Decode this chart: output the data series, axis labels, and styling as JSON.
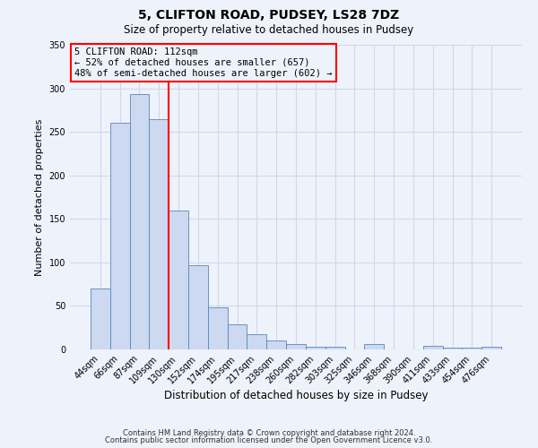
{
  "title": "5, CLIFTON ROAD, PUDSEY, LS28 7DZ",
  "subtitle": "Size of property relative to detached houses in Pudsey",
  "xlabel": "Distribution of detached houses by size in Pudsey",
  "ylabel": "Number of detached properties",
  "bin_labels": [
    "44sqm",
    "66sqm",
    "87sqm",
    "109sqm",
    "130sqm",
    "152sqm",
    "174sqm",
    "195sqm",
    "217sqm",
    "238sqm",
    "260sqm",
    "282sqm",
    "303sqm",
    "325sqm",
    "346sqm",
    "368sqm",
    "390sqm",
    "411sqm",
    "433sqm",
    "454sqm",
    "476sqm"
  ],
  "bar_values": [
    70,
    260,
    293,
    265,
    160,
    97,
    48,
    29,
    18,
    10,
    6,
    3,
    3,
    0,
    6,
    0,
    0,
    4,
    2,
    2,
    3
  ],
  "bar_color": "#ccd9f0",
  "bar_edge_color": "#5588bb",
  "vline_x_index": 3,
  "vline_color": "red",
  "annotation_title": "5 CLIFTON ROAD: 112sqm",
  "annotation_line1": "← 52% of detached houses are smaller (657)",
  "annotation_line2": "48% of semi-detached houses are larger (602) →",
  "annotation_box_color": "red",
  "ylim": [
    0,
    350
  ],
  "yticks": [
    0,
    50,
    100,
    150,
    200,
    250,
    300,
    350
  ],
  "footer1": "Contains HM Land Registry data © Crown copyright and database right 2024.",
  "footer2": "Contains public sector information licensed under the Open Government Licence v3.0.",
  "bg_color": "#eef2fa",
  "grid_color": "#d0d8e8"
}
